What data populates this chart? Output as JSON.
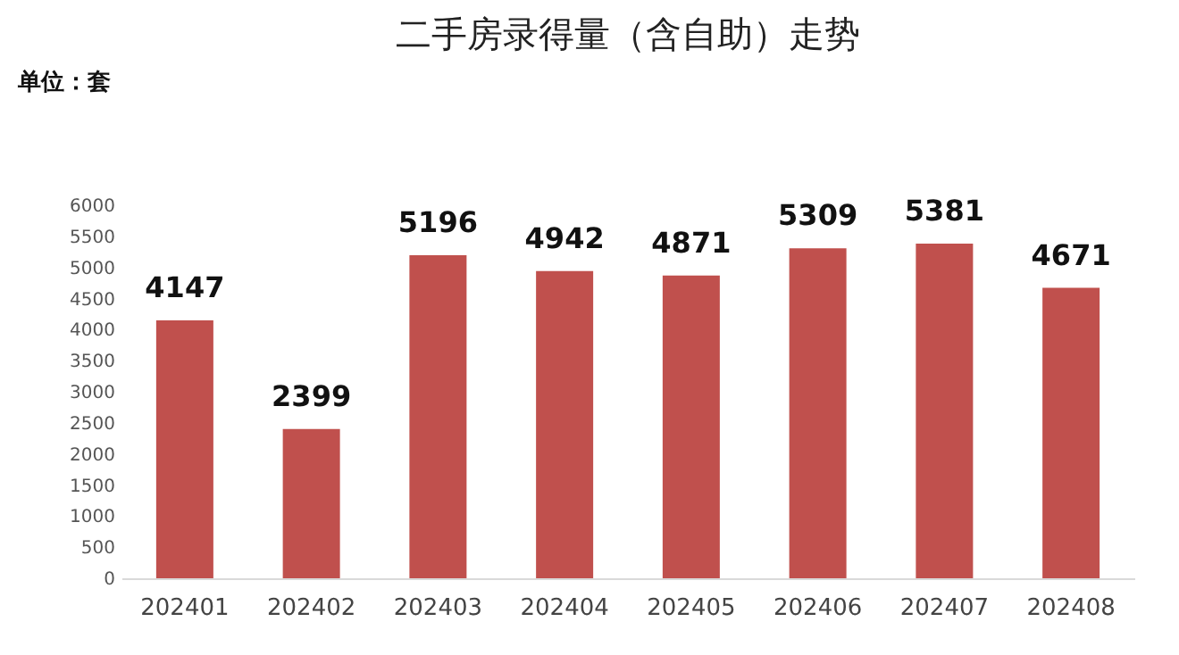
{
  "chart_data": {
    "type": "bar",
    "title": "二手房录得量（含自助）走势",
    "annotations": [
      "单位：套"
    ],
    "categories": [
      "202401",
      "202402",
      "202403",
      "202404",
      "202405",
      "202406",
      "202407",
      "202408"
    ],
    "values": [
      4147,
      2399,
      5196,
      4942,
      4871,
      5309,
      5381,
      4671
    ],
    "color": "#c0504d",
    "ylim": [
      0,
      6000
    ],
    "yticks": [
      0,
      500,
      1000,
      1500,
      2000,
      2500,
      3000,
      3500,
      4000,
      4500,
      5000,
      5500,
      6000
    ],
    "grid": false,
    "data_labels": true
  }
}
